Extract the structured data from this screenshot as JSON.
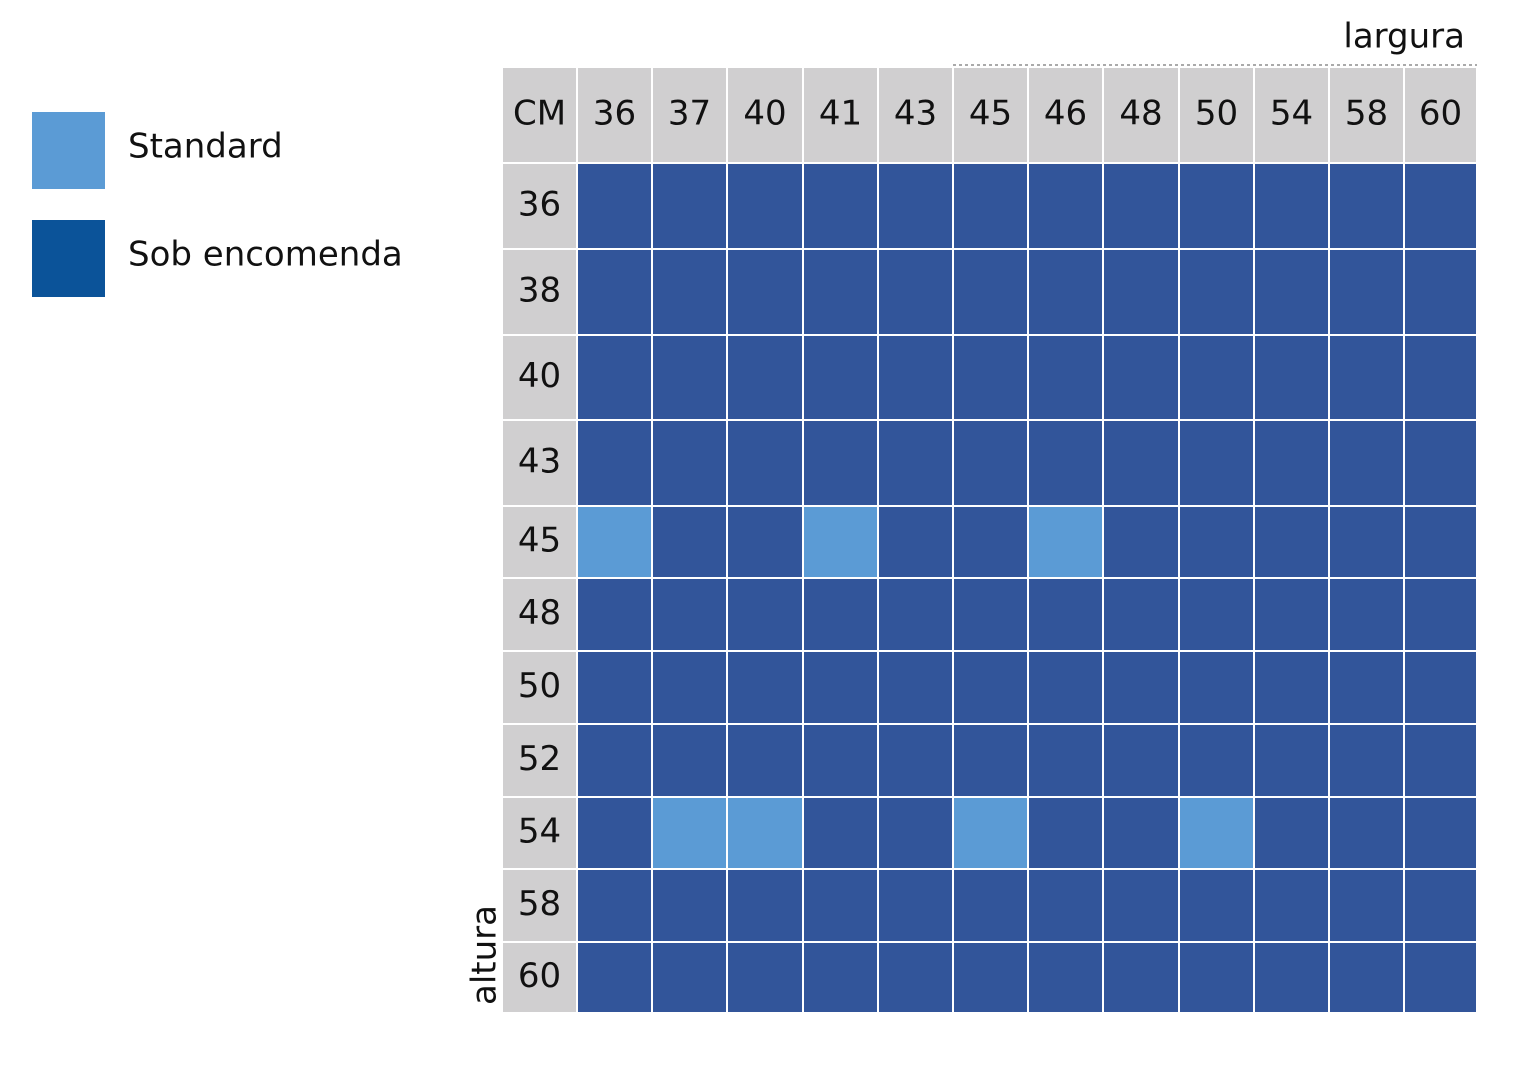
{
  "legend": [
    {
      "label": "Standard",
      "color": "#5b9bd5"
    },
    {
      "label": "Sob encomenda",
      "color": "#0b5399"
    }
  ],
  "table": {
    "corner": "CM",
    "column_label": "largura",
    "row_label": "altura",
    "header_color": "#d0cfd0",
    "cell_colors": [
      "#5b9bd5",
      "#32559a"
    ],
    "columns": [
      36,
      37,
      40,
      41,
      43,
      45,
      46,
      48,
      50,
      54,
      58,
      60
    ],
    "rows": [
      {
        "label": 36,
        "cells": [
          1,
          1,
          1,
          1,
          1,
          1,
          1,
          1,
          1,
          1,
          1,
          1
        ]
      },
      {
        "label": 38,
        "cells": [
          1,
          1,
          1,
          1,
          1,
          1,
          1,
          1,
          1,
          1,
          1,
          1
        ]
      },
      {
        "label": 40,
        "cells": [
          1,
          1,
          1,
          1,
          1,
          1,
          1,
          1,
          1,
          1,
          1,
          1
        ]
      },
      {
        "label": 43,
        "cells": [
          1,
          1,
          1,
          1,
          1,
          1,
          1,
          1,
          1,
          1,
          1,
          1
        ]
      },
      {
        "label": 45,
        "cells": [
          0,
          1,
          1,
          0,
          1,
          1,
          0,
          1,
          1,
          1,
          1,
          1
        ]
      },
      {
        "label": 48,
        "cells": [
          1,
          1,
          1,
          1,
          1,
          1,
          1,
          1,
          1,
          1,
          1,
          1
        ]
      },
      {
        "label": 50,
        "cells": [
          1,
          1,
          1,
          1,
          1,
          1,
          1,
          1,
          1,
          1,
          1,
          1
        ]
      },
      {
        "label": 52,
        "cells": [
          1,
          1,
          1,
          1,
          1,
          1,
          1,
          1,
          1,
          1,
          1,
          1
        ]
      },
      {
        "label": 54,
        "cells": [
          1,
          0,
          0,
          1,
          1,
          0,
          1,
          1,
          0,
          1,
          1,
          1
        ]
      },
      {
        "label": 58,
        "cells": [
          1,
          1,
          1,
          1,
          1,
          1,
          1,
          1,
          1,
          1,
          1,
          1
        ]
      },
      {
        "label": 60,
        "cells": [
          1,
          1,
          1,
          1,
          1,
          1,
          1,
          1,
          1,
          1,
          1,
          1
        ]
      }
    ]
  }
}
